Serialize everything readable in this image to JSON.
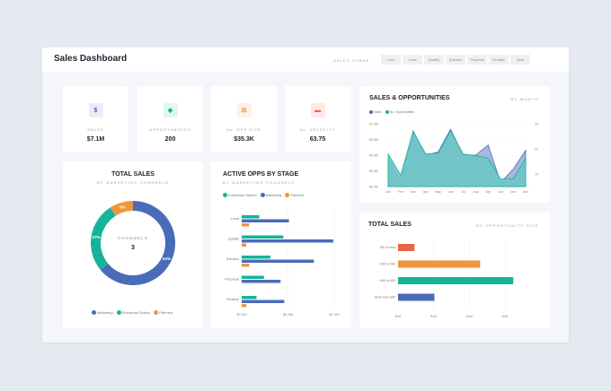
{
  "header": {
    "title": "Sales Dashboard",
    "stage_label": "SALES STAGE",
    "stages": [
      "Lost",
      "Lead",
      "Qualify",
      "Solution",
      "Proposal",
      "Finalize",
      "Won"
    ]
  },
  "colors": {
    "blue": "#4a6bb8",
    "teal": "#16b39a",
    "orange": "#f0963a",
    "red": "#ec6447"
  },
  "kpis": [
    {
      "icon": "dollar-icon",
      "label": "SALES",
      "value": "$7.1M"
    },
    {
      "icon": "target-icon",
      "label": "OPPORTUNITIES",
      "value": "200"
    },
    {
      "icon": "scale-icon",
      "label": "AV. OPP SIZE",
      "value": "$35.3K"
    },
    {
      "icon": "calendar-icon",
      "label": "AV. VELOCITY",
      "value": "63.75"
    }
  ],
  "chart_data": [
    {
      "type": "pie",
      "title": "TOTAL SALES",
      "subtitle": "BY MARKETING CHANNELS",
      "center_label": "CHANNELS",
      "center_value": "3",
      "slices": [
        {
          "name": "Marketing",
          "value": 64,
          "label": "64%"
        },
        {
          "name": "Enterprise Sellers",
          "value": 27,
          "label": "27%"
        },
        {
          "name": "Partners",
          "value": 9,
          "label": "9%"
        }
      ],
      "legend": "bottom"
    },
    {
      "type": "bar",
      "orientation": "horizontal",
      "title": "ACTIVE OPPS BY STAGE",
      "subtitle": "BY MARKETING CHANNELS",
      "categories": [
        "Lead",
        "Qualify",
        "Solution",
        "Proposal",
        "Finalize"
      ],
      "series": [
        {
          "name": "Enterprise Sellers",
          "values": [
            0.19,
            0.45,
            0.31,
            0.24,
            0.16
          ]
        },
        {
          "name": "Marketing",
          "values": [
            0.51,
            0.99,
            0.78,
            0.42,
            0.46
          ]
        },
        {
          "name": "Partners",
          "values": [
            0.08,
            0.05,
            0.08,
            0,
            0.05
          ]
        }
      ],
      "xlim": [
        0,
        1.0
      ],
      "xticks": [
        "$0.0M",
        "$0.5M",
        "$1.0M"
      ],
      "legend": "top-left"
    },
    {
      "type": "area",
      "title": "SALES & OPPORTUNITIES",
      "subtitle": "BY MONTH",
      "categories": [
        "Jan",
        "Feb",
        "Mar",
        "Apr",
        "May",
        "Jun",
        "Jul",
        "Aug",
        "Sep",
        "Oct",
        "Nov",
        "Dec"
      ],
      "series": [
        {
          "name": "Sales",
          "axis": "left",
          "values": [
            0.57,
            0.25,
            0.91,
            0.6,
            0.64,
            0.93,
            0.6,
            0.6,
            0.73,
            0.25,
            0.42,
            0.66
          ]
        },
        {
          "name": "No. Opportunities",
          "axis": "right",
          "values": [
            18,
            9.5,
            27,
            18,
            18.3,
            27.3,
            18,
            17.3,
            16.3,
            8,
            8,
            16.3
          ]
        }
      ],
      "ylim_left": [
        0.2,
        1.0
      ],
      "yticks_left": [
        "$1.0M",
        "$0.8M",
        "$0.6M",
        "$0.4M",
        "$0.2M"
      ],
      "ylim_right": [
        5,
        30
      ],
      "yticks_right": [
        "30",
        "20",
        "10"
      ],
      "legend": "top-left"
    },
    {
      "type": "bar",
      "orientation": "horizontal",
      "title": "TOTAL SALES",
      "subtitle": "BY OPPORTUNITY SIZE",
      "categories": [
        "20K or less",
        "20K to 40K",
        "40K to 60K",
        "More than 60K"
      ],
      "values": [
        0.46,
        2.3,
        3.23,
        1.02
      ],
      "xlim": [
        0,
        3.4
      ],
      "xticks": [
        "$0M",
        "$1M",
        "$2M",
        "$3M"
      ]
    }
  ]
}
